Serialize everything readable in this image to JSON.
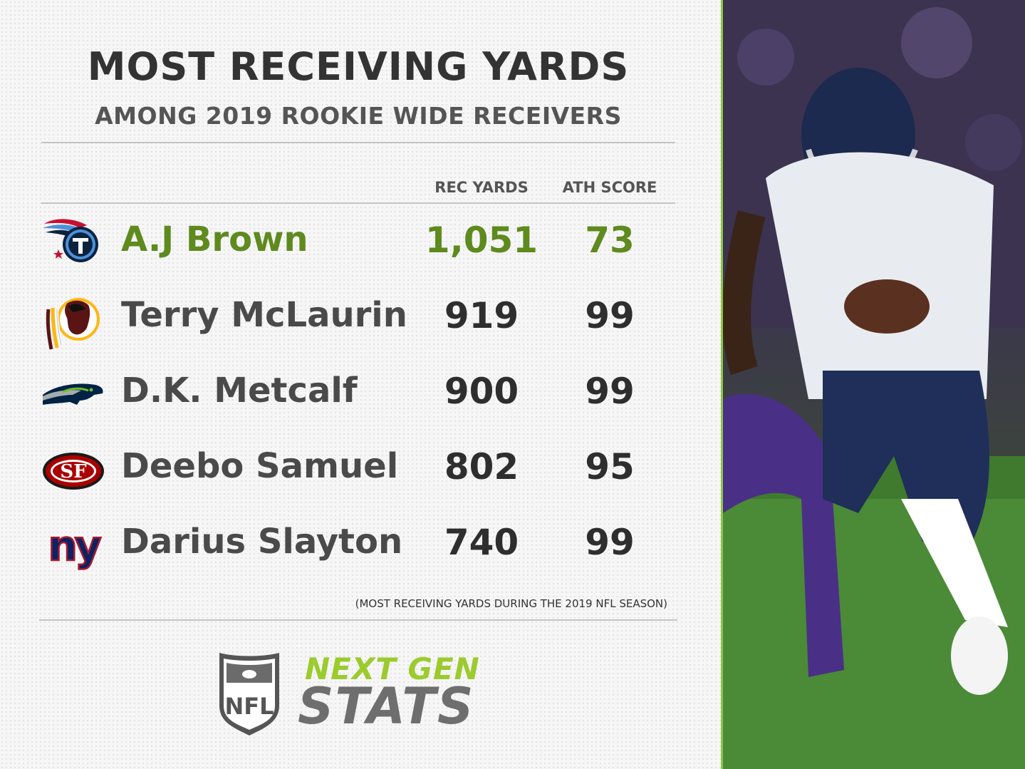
{
  "title": "MOST RECEIVING YARDS",
  "subtitle": "AMONG 2019 ROOKIE WIDE RECEIVERS",
  "columns": {
    "rec_yards": "REC YARDS",
    "ath_score": "ATH SCORE"
  },
  "rows": [
    {
      "team_icon": "titans-logo-icon",
      "player": "A.J Brown",
      "rec_yards": "1,051",
      "ath_score": "73",
      "highlight": true
    },
    {
      "team_icon": "redskins-logo-icon",
      "player": "Terry McLaurin",
      "rec_yards": "919",
      "ath_score": "99"
    },
    {
      "team_icon": "seahawks-logo-icon",
      "player": "D.K. Metcalf",
      "rec_yards": "900",
      "ath_score": "99"
    },
    {
      "team_icon": "49ers-logo-icon",
      "player": "Deebo Samuel",
      "rec_yards": "802",
      "ath_score": "95"
    },
    {
      "team_icon": "giants-logo-icon",
      "player": "Darius Slayton",
      "rec_yards": "740",
      "ath_score": "99"
    }
  ],
  "footnote": "(MOST RECEIVING YARDS DURING THE 2019 NFL SEASON)",
  "brand": {
    "logo_text": "NFL",
    "line1": "NEXT GEN",
    "line2": "STATS"
  },
  "colors": {
    "highlight": "#5e8a1e",
    "accent": "#8cc63f",
    "text": "#333333"
  }
}
